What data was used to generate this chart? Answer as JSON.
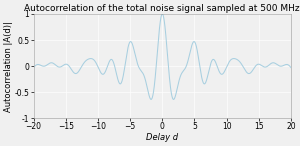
{
  "title": "Autocorrelation of the total noise signal sampled at 500 MHz",
  "xlabel": "Delay d",
  "ylabel": "Autocorrelation |A(d)|",
  "xlim": [
    -20,
    20
  ],
  "ylim": [
    -1,
    1
  ],
  "xticks": [
    -20,
    -15,
    -10,
    -5,
    0,
    5,
    10,
    15,
    20
  ],
  "ytick_labels": [
    "-1",
    "-0.5",
    "0",
    "0.5",
    "1"
  ],
  "yticks": [
    -1,
    -0.5,
    0,
    0.5,
    1
  ],
  "line_color": "#a8cfe0",
  "bg_color": "#f0f0f0",
  "plot_bg": "#f0f0f0",
  "title_fontsize": 6.5,
  "label_fontsize": 6.0,
  "tick_fontsize": 5.5,
  "linewidth": 0.75,
  "seed": 1234,
  "n_samples": 500,
  "freq1": 0.22,
  "freq2": 0.38,
  "sinc_bw1": 0.12,
  "sinc_bw2": 0.08
}
